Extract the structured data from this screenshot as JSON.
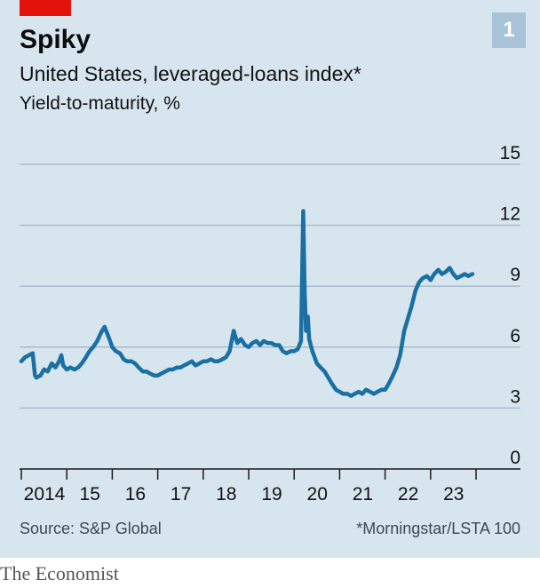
{
  "badge": "1",
  "footer": {
    "source": "Source: S&P Global",
    "note": "*Morningstar/LSTA 100"
  },
  "brand": "The Economist",
  "colors": {
    "background": "#d7e5ef",
    "line": "#1a6fa3",
    "accent": "#e3120b",
    "badge": "#a8c4d6"
  },
  "chart_data": {
    "type": "line",
    "title": "Spiky",
    "subtitle": "United States, leveraged-loans index*",
    "ylabel": "Yield-to-maturity, %",
    "ylim": [
      0,
      15
    ],
    "yticks": [
      0,
      3,
      6,
      9,
      12,
      15
    ],
    "xlim": [
      2014.0,
      2024.0
    ],
    "xticks": [
      {
        "value": 2014,
        "label": "2014"
      },
      {
        "value": 2015,
        "label": "15"
      },
      {
        "value": 2016,
        "label": "16"
      },
      {
        "value": 2017,
        "label": "17"
      },
      {
        "value": 2018,
        "label": "18"
      },
      {
        "value": 2019,
        "label": "19"
      },
      {
        "value": 2020,
        "label": "20"
      },
      {
        "value": 2021,
        "label": "21"
      },
      {
        "value": 2022,
        "label": "22"
      },
      {
        "value": 2023,
        "label": "23"
      },
      {
        "value": 2024,
        "label": ""
      }
    ],
    "grid": true,
    "series": [
      {
        "x": [
          2014.0,
          2014.08,
          2014.17,
          2014.25,
          2014.3,
          2014.33,
          2014.42,
          2014.5,
          2014.58,
          2014.67,
          2014.75,
          2014.83,
          2014.88,
          2014.92,
          2015.0,
          2015.08,
          2015.17,
          2015.25,
          2015.33,
          2015.42,
          2015.5,
          2015.58,
          2015.67,
          2015.75,
          2015.83,
          2015.92,
          2016.0,
          2016.08,
          2016.17,
          2016.25,
          2016.33,
          2016.42,
          2016.5,
          2016.58,
          2016.67,
          2016.75,
          2016.83,
          2016.92,
          2017.0,
          2017.08,
          2017.17,
          2017.25,
          2017.33,
          2017.42,
          2017.5,
          2017.58,
          2017.67,
          2017.75,
          2017.83,
          2017.92,
          2018.0,
          2018.08,
          2018.17,
          2018.25,
          2018.33,
          2018.42,
          2018.5,
          2018.58,
          2018.67,
          2018.75,
          2018.83,
          2018.92,
          2019.0,
          2019.08,
          2019.17,
          2019.25,
          2019.33,
          2019.42,
          2019.5,
          2019.58,
          2019.67,
          2019.75,
          2019.83,
          2019.92,
          2020.0,
          2020.08,
          2020.15,
          2020.2,
          2020.23,
          2020.26,
          2020.3,
          2020.33,
          2020.4,
          2020.5,
          2020.58,
          2020.67,
          2020.75,
          2020.83,
          2020.92,
          2021.0,
          2021.08,
          2021.17,
          2021.25,
          2021.33,
          2021.42,
          2021.5,
          2021.58,
          2021.67,
          2021.75,
          2021.83,
          2021.92,
          2022.0,
          2022.08,
          2022.17,
          2022.25,
          2022.33,
          2022.42,
          2022.5,
          2022.58,
          2022.67,
          2022.75,
          2022.83,
          2022.92,
          2023.0,
          2023.08,
          2023.17,
          2023.25,
          2023.33,
          2023.42,
          2023.5,
          2023.58,
          2023.67,
          2023.75,
          2023.83,
          2023.92
        ],
        "y": [
          5.3,
          5.5,
          5.6,
          5.7,
          4.6,
          4.5,
          4.6,
          4.9,
          4.8,
          5.2,
          5.0,
          5.3,
          5.6,
          5.1,
          4.9,
          5.0,
          4.9,
          5.0,
          5.2,
          5.5,
          5.8,
          6.0,
          6.3,
          6.7,
          7.0,
          6.5,
          6.0,
          5.8,
          5.7,
          5.4,
          5.3,
          5.3,
          5.2,
          5.0,
          4.8,
          4.8,
          4.7,
          4.6,
          4.6,
          4.7,
          4.8,
          4.9,
          4.9,
          5.0,
          5.0,
          5.1,
          5.2,
          5.3,
          5.1,
          5.2,
          5.3,
          5.3,
          5.4,
          5.3,
          5.3,
          5.4,
          5.5,
          5.8,
          6.8,
          6.2,
          6.4,
          6.1,
          6.0,
          6.2,
          6.3,
          6.1,
          6.3,
          6.2,
          6.2,
          6.1,
          6.1,
          5.8,
          5.7,
          5.8,
          5.8,
          5.9,
          6.3,
          12.7,
          8.8,
          6.8,
          7.5,
          6.4,
          5.8,
          5.2,
          5.0,
          4.8,
          4.5,
          4.2,
          3.9,
          3.8,
          3.7,
          3.7,
          3.6,
          3.7,
          3.8,
          3.7,
          3.9,
          3.8,
          3.7,
          3.8,
          3.9,
          3.9,
          4.2,
          4.6,
          5.0,
          5.6,
          6.8,
          7.4,
          8.0,
          8.8,
          9.2,
          9.4,
          9.5,
          9.3,
          9.6,
          9.8,
          9.6,
          9.7,
          9.9,
          9.6,
          9.4,
          9.5,
          9.6,
          9.5,
          9.6
        ]
      }
    ]
  }
}
